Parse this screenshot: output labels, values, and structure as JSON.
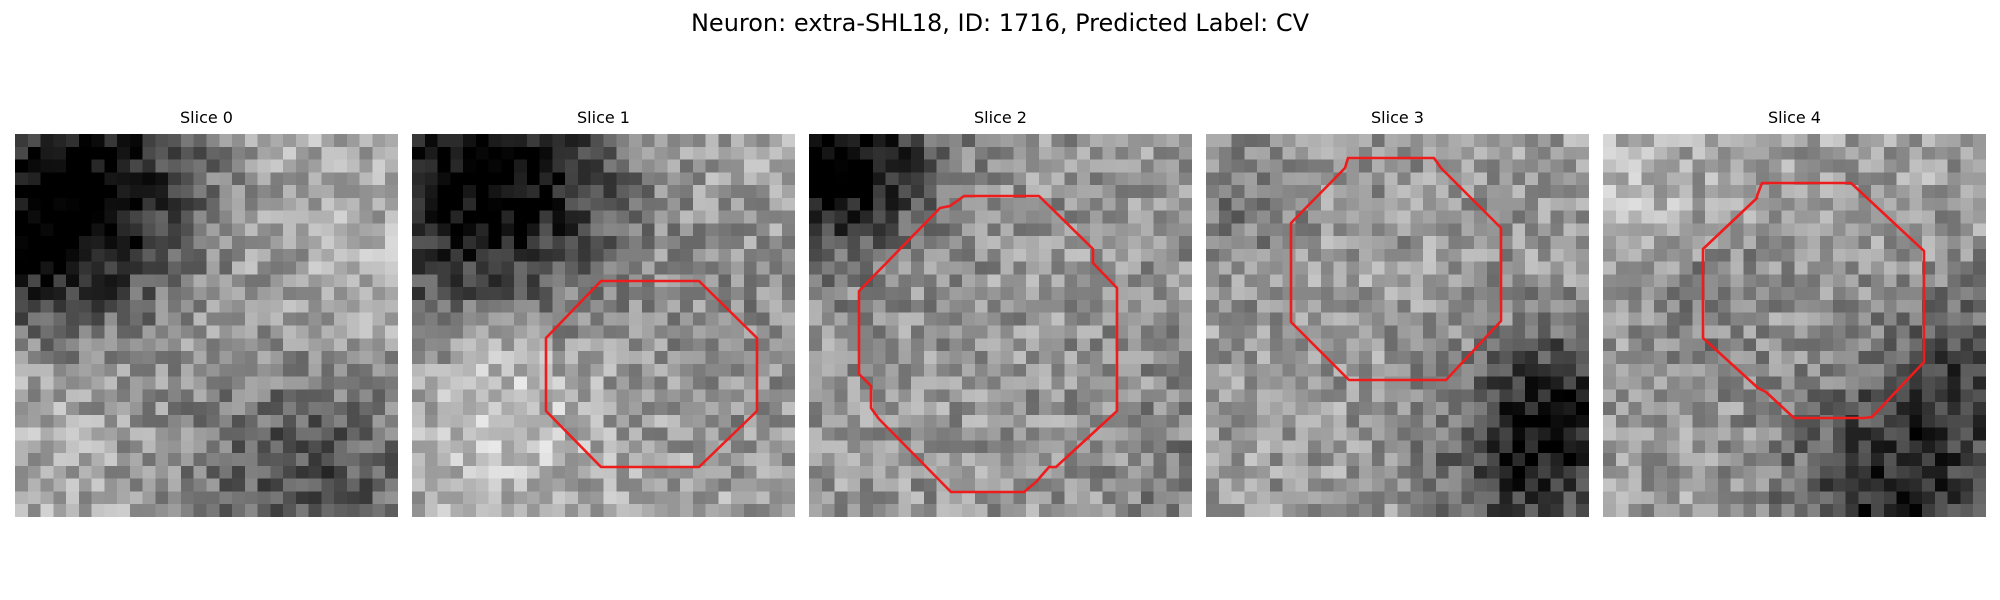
{
  "figure": {
    "title": "Neuron: extra-SHL18, ID: 1716, Predicted Label: CV"
  },
  "panels": [
    {
      "title": "Slice 0"
    },
    {
      "title": "Slice 1"
    },
    {
      "title": "Slice 2"
    },
    {
      "title": "Slice 3"
    },
    {
      "title": "Slice 4"
    }
  ],
  "colors": {
    "contour": "#ee1c1c",
    "background": "#ffffff"
  }
}
